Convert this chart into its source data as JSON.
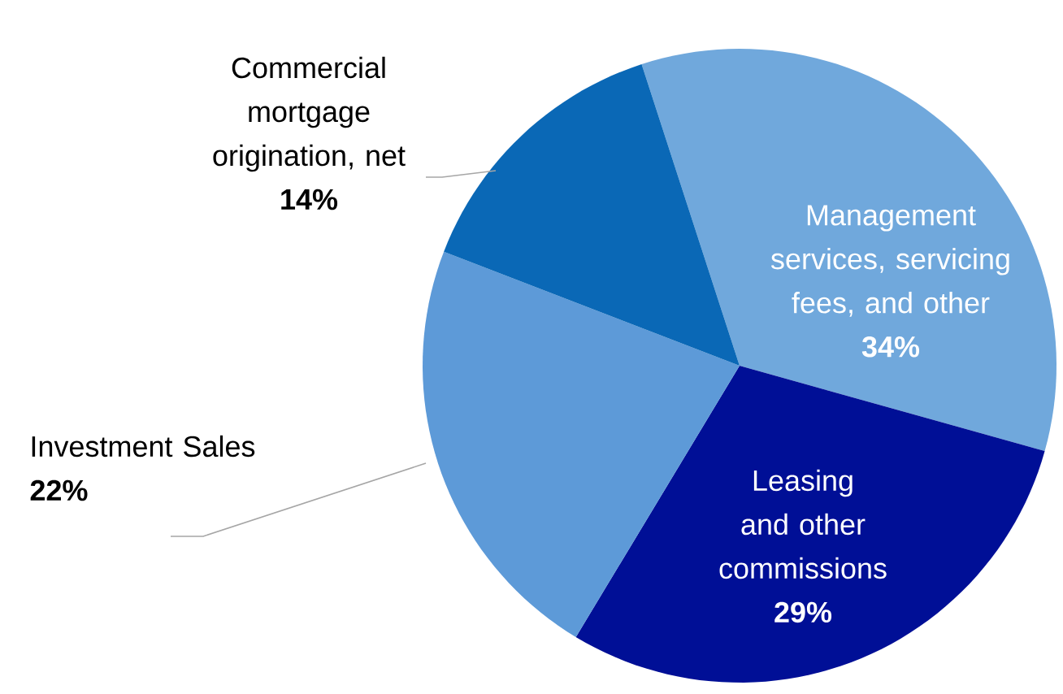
{
  "chart_data": {
    "type": "pie",
    "categories": [
      "Management services, servicing fees, and other",
      "Leasing and other commissions",
      "Investment Sales",
      "Commercial mortgage origination, net"
    ],
    "values": [
      34,
      29,
      22,
      14
    ],
    "value_labels": [
      "34%",
      "29%",
      "22%",
      "14%"
    ],
    "colors": [
      "#70a8dc",
      "#000f96",
      "#5d9ad8",
      "#0a68b6"
    ]
  }
}
